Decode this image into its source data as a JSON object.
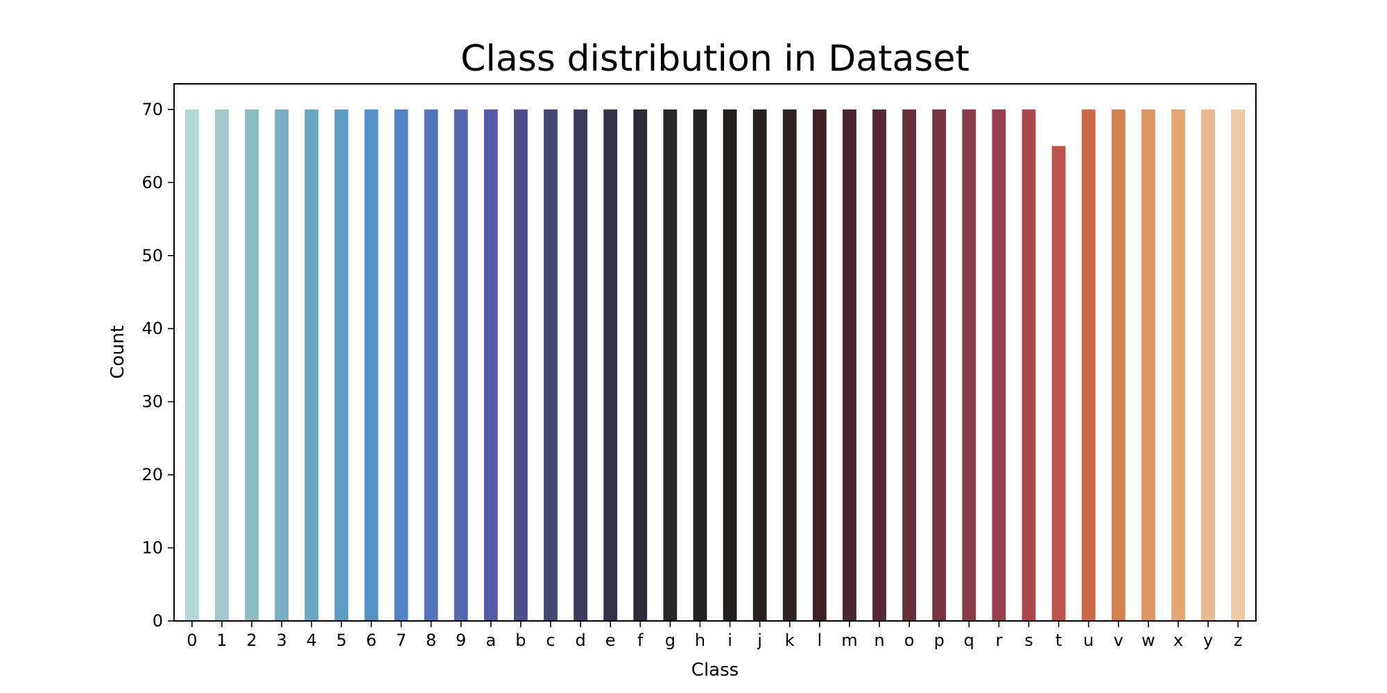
{
  "chart_data": {
    "type": "bar",
    "title": "Class distribution in Dataset",
    "xlabel": "Class",
    "ylabel": "Count",
    "ylim": [
      0,
      73.5
    ],
    "yticks": [
      0,
      10,
      20,
      30,
      40,
      50,
      60,
      70
    ],
    "grid": false,
    "legend": "none",
    "categories": [
      "0",
      "1",
      "2",
      "3",
      "4",
      "5",
      "6",
      "7",
      "8",
      "9",
      "a",
      "b",
      "c",
      "d",
      "e",
      "f",
      "g",
      "h",
      "i",
      "j",
      "k",
      "l",
      "m",
      "n",
      "o",
      "p",
      "q",
      "r",
      "s",
      "t",
      "u",
      "v",
      "w",
      "x",
      "y",
      "z"
    ],
    "values": [
      70,
      70,
      70,
      70,
      70,
      70,
      70,
      70,
      70,
      70,
      70,
      70,
      70,
      70,
      70,
      70,
      70,
      70,
      70,
      70,
      70,
      70,
      70,
      70,
      70,
      70,
      70,
      70,
      70,
      65,
      70,
      70,
      70,
      70,
      70,
      70
    ],
    "colors": [
      "#b3d6d6",
      "#a2c9cc",
      "#8dbcc4",
      "#79afc3",
      "#6aa7c5",
      "#5c9dc5",
      "#5590c7",
      "#5283c7",
      "#5174bb",
      "#5466b0",
      "#545aa3",
      "#4f4f8e",
      "#474574",
      "#3e3a5e",
      "#353148",
      "#2e2a37",
      "#282528",
      "#232222",
      "#211e1e",
      "#261f1f",
      "#302022",
      "#3d2126",
      "#4b252d",
      "#582a36",
      "#672e3d",
      "#763443",
      "#873a48",
      "#993f4b",
      "#ac474d",
      "#bc5449",
      "#cb6845",
      "#d5804f",
      "#df9463",
      "#e5a674",
      "#ebb890",
      "#f0c9a5"
    ]
  }
}
